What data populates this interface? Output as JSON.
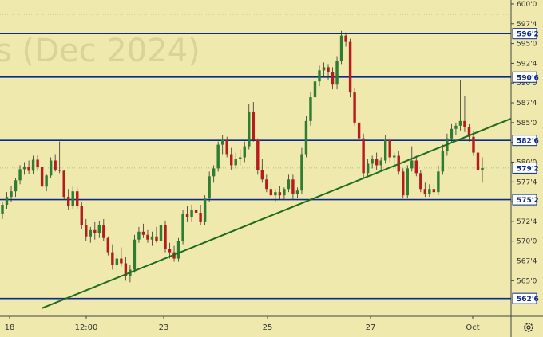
{
  "watermark": "s (Dec 2024)",
  "settings_icon": "gear-icon",
  "colors": {
    "background": "#efe9ad",
    "up_candle": "#2e7d32",
    "down_candle": "#b71c1c",
    "level_line": "#0b2a8a",
    "trend_line": "#1f6b1f",
    "level_label_bg": "#ffffff"
  },
  "chart_data": {
    "type": "candlestick",
    "title": "",
    "xlabel": "",
    "ylabel": "",
    "ylim": [
      560.5,
      600.5
    ],
    "grid": false,
    "price_ticks": [
      "600'0",
      "597'4",
      "595'0",
      "592'4",
      "590'0",
      "587'4",
      "585'0",
      "582'4",
      "580'0",
      "577'4",
      "575'0",
      "572'4",
      "570'0",
      "567'4",
      "565'0"
    ],
    "price_tick_values": [
      600.0,
      597.5,
      595.0,
      592.5,
      590.0,
      587.5,
      585.0,
      582.5,
      580.0,
      577.5,
      575.0,
      572.5,
      570.0,
      567.5,
      565.0
    ],
    "x_ticks": [
      "18",
      "12:00",
      "23",
      "25",
      "27",
      "Oct"
    ],
    "levels": [
      {
        "label": "596'2",
        "value": 596.25
      },
      {
        "label": "590'6",
        "value": 590.75
      },
      {
        "label": "582'6",
        "value": 582.75
      },
      {
        "label": "575'2",
        "value": 575.25
      },
      {
        "label": "562'6",
        "value": 562.75
      }
    ],
    "current_price": {
      "label": "579'2",
      "value": 579.25
    },
    "trend_line": {
      "from_price": 561.5,
      "to_price": 585.5
    },
    "candles": [
      [
        573.4,
        575.0,
        572.8,
        574.6
      ],
      [
        574.6,
        576.2,
        574.1,
        575.6
      ],
      [
        575.6,
        577.0,
        575.0,
        576.3
      ],
      [
        576.3,
        578.0,
        575.6,
        577.7
      ],
      [
        577.7,
        579.6,
        577.2,
        579.1
      ],
      [
        579.1,
        580.0,
        578.4,
        579.4
      ],
      [
        579.4,
        580.2,
        578.5,
        578.9
      ],
      [
        578.9,
        580.8,
        578.5,
        580.3
      ],
      [
        580.3,
        580.9,
        578.9,
        579.4
      ],
      [
        579.4,
        579.6,
        576.4,
        576.9
      ],
      [
        576.9,
        578.5,
        576.3,
        578.3
      ],
      [
        578.3,
        580.6,
        578.0,
        580.2
      ],
      [
        580.2,
        581.0,
        578.8,
        579.0
      ],
      [
        579.0,
        582.6,
        578.6,
        578.9
      ],
      [
        578.9,
        579.0,
        575.2,
        575.6
      ],
      [
        575.6,
        576.6,
        573.9,
        574.4
      ],
      [
        574.4,
        576.9,
        574.1,
        576.3
      ],
      [
        576.3,
        576.8,
        574.1,
        574.5
      ],
      [
        574.5,
        575.0,
        571.5,
        572.0
      ],
      [
        572.0,
        572.8,
        570.0,
        570.6
      ],
      [
        570.6,
        571.8,
        569.8,
        571.4
      ],
      [
        571.4,
        572.4,
        570.2,
        571.0
      ],
      [
        571.0,
        572.6,
        570.4,
        572.0
      ],
      [
        572.0,
        572.8,
        570.0,
        570.4
      ],
      [
        570.4,
        570.6,
        568.2,
        568.6
      ],
      [
        568.6,
        569.6,
        566.4,
        567.0
      ],
      [
        567.0,
        568.4,
        566.2,
        567.8
      ],
      [
        567.8,
        569.2,
        566.8,
        567.2
      ],
      [
        567.2,
        568.0,
        565.0,
        565.6
      ],
      [
        565.6,
        567.0,
        564.8,
        566.4
      ],
      [
        566.4,
        570.8,
        566.0,
        570.2
      ],
      [
        570.2,
        571.8,
        569.8,
        571.2
      ],
      [
        571.2,
        572.2,
        570.4,
        570.8
      ],
      [
        570.8,
        571.4,
        569.8,
        570.2
      ],
      [
        570.2,
        571.2,
        569.4,
        570.6
      ],
      [
        570.6,
        571.8,
        569.8,
        570.0
      ],
      [
        570.0,
        572.6,
        569.2,
        572.0
      ],
      [
        572.0,
        572.6,
        568.6,
        569.0
      ],
      [
        569.0,
        569.8,
        567.8,
        568.6
      ],
      [
        568.6,
        569.4,
        567.4,
        567.8
      ],
      [
        567.8,
        570.4,
        567.4,
        570.0
      ],
      [
        570.0,
        574.0,
        569.6,
        573.4
      ],
      [
        573.4,
        574.4,
        572.4,
        573.0
      ],
      [
        573.0,
        574.6,
        572.4,
        574.0
      ],
      [
        574.0,
        574.8,
        573.2,
        573.6
      ],
      [
        573.6,
        574.6,
        572.0,
        572.4
      ],
      [
        572.4,
        575.8,
        572.0,
        575.4
      ],
      [
        575.4,
        578.8,
        575.0,
        578.2
      ],
      [
        578.2,
        579.6,
        577.4,
        579.2
      ],
      [
        579.2,
        582.6,
        578.8,
        582.2
      ],
      [
        582.2,
        583.4,
        581.0,
        582.8
      ],
      [
        582.8,
        583.2,
        580.6,
        581.0
      ],
      [
        581.0,
        581.8,
        579.0,
        579.6
      ],
      [
        579.6,
        581.2,
        579.2,
        580.4
      ],
      [
        580.4,
        581.6,
        579.6,
        580.6
      ],
      [
        580.6,
        582.6,
        580.0,
        582.0
      ],
      [
        582.0,
        587.4,
        581.6,
        586.4
      ],
      [
        586.4,
        587.6,
        582.6,
        582.8
      ],
      [
        582.8,
        583.0,
        578.4,
        579.0
      ],
      [
        579.0,
        580.4,
        577.4,
        577.8
      ],
      [
        577.8,
        578.4,
        576.2,
        576.6
      ],
      [
        576.6,
        577.4,
        575.4,
        575.8
      ],
      [
        575.8,
        576.6,
        575.0,
        576.2
      ],
      [
        576.2,
        577.0,
        575.2,
        575.8
      ],
      [
        575.8,
        576.8,
        575.2,
        576.6
      ],
      [
        576.6,
        578.4,
        576.2,
        577.8
      ],
      [
        577.8,
        578.4,
        575.2,
        576.0
      ],
      [
        576.0,
        576.8,
        575.4,
        576.4
      ],
      [
        576.4,
        581.8,
        576.0,
        581.0
      ],
      [
        581.0,
        585.8,
        580.6,
        585.2
      ],
      [
        585.2,
        588.8,
        584.6,
        588.2
      ],
      [
        588.2,
        590.6,
        587.6,
        590.2
      ],
      [
        590.2,
        592.2,
        589.6,
        591.6
      ],
      [
        591.6,
        592.6,
        590.8,
        592.0
      ],
      [
        592.0,
        592.4,
        590.4,
        591.4
      ],
      [
        591.4,
        592.0,
        589.2,
        589.8
      ],
      [
        589.8,
        593.4,
        589.2,
        592.8
      ],
      [
        592.8,
        596.6,
        592.4,
        596.0
      ],
      [
        596.0,
        596.4,
        594.6,
        595.2
      ],
      [
        595.2,
        595.6,
        588.2,
        588.8
      ],
      [
        588.8,
        589.4,
        584.6,
        585.0
      ],
      [
        585.0,
        585.4,
        582.6,
        583.0
      ],
      [
        583.0,
        583.6,
        578.0,
        578.6
      ],
      [
        578.6,
        580.4,
        578.2,
        579.8
      ],
      [
        579.8,
        580.8,
        579.2,
        580.4
      ],
      [
        580.4,
        581.2,
        579.0,
        579.6
      ],
      [
        579.6,
        580.6,
        578.8,
        580.2
      ],
      [
        580.2,
        583.4,
        579.8,
        582.8
      ],
      [
        582.8,
        583.0,
        580.0,
        580.6
      ],
      [
        580.6,
        581.2,
        579.6,
        580.8
      ],
      [
        580.8,
        581.4,
        578.4,
        578.8
      ],
      [
        578.8,
        579.2,
        575.4,
        575.8
      ],
      [
        575.8,
        579.6,
        575.4,
        579.2
      ],
      [
        579.2,
        582.0,
        578.8,
        580.2
      ],
      [
        580.2,
        580.8,
        578.2,
        578.6
      ],
      [
        578.6,
        579.0,
        576.2,
        576.6
      ],
      [
        576.6,
        577.4,
        575.6,
        576.0
      ],
      [
        576.0,
        577.2,
        575.6,
        576.6
      ],
      [
        576.6,
        577.2,
        575.8,
        576.2
      ],
      [
        576.2,
        579.6,
        575.8,
        578.8
      ],
      [
        578.8,
        582.2,
        578.4,
        581.4
      ],
      [
        581.4,
        583.6,
        580.8,
        583.0
      ],
      [
        583.0,
        584.8,
        582.4,
        584.2
      ],
      [
        584.2,
        585.0,
        583.4,
        584.6
      ],
      [
        584.6,
        590.4,
        584.0,
        585.2
      ],
      [
        585.2,
        588.4,
        583.8,
        584.4
      ],
      [
        584.4,
        584.8,
        582.6,
        583.2
      ],
      [
        583.2,
        584.0,
        580.8,
        581.2
      ],
      [
        581.2,
        581.6,
        578.4,
        579.0
      ],
      [
        579.0,
        580.6,
        577.4,
        579.25
      ]
    ]
  }
}
